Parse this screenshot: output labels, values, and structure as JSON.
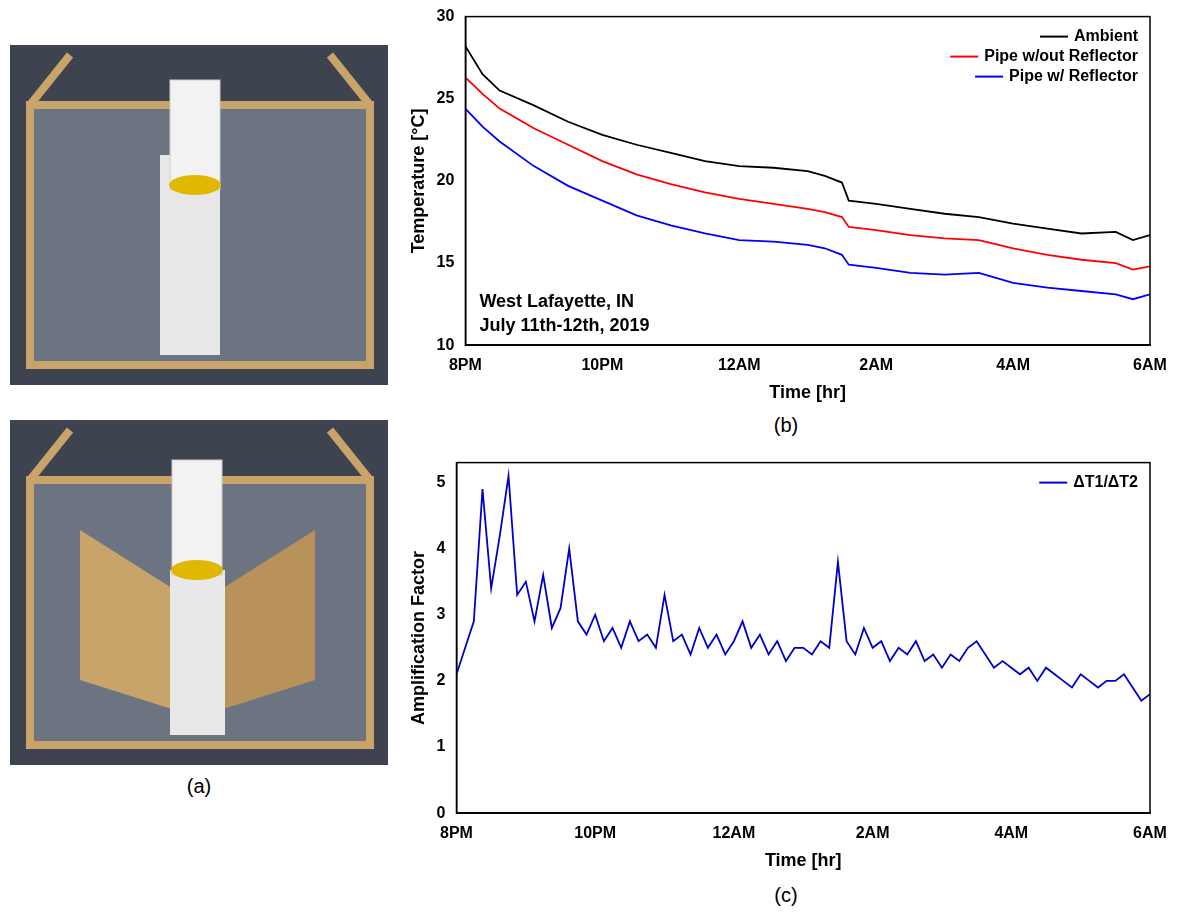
{
  "photo_panel": {
    "label": "(a)"
  },
  "chart_data": [
    {
      "type": "line",
      "panel": "(b)",
      "x_label": "Time [hr]",
      "y_label": "Temperature [°C]",
      "annotations": [
        "West Lafayette, IN",
        "July 11th-12th, 2019"
      ],
      "x": [
        20,
        20.25,
        20.5,
        21,
        21.5,
        22,
        22.5,
        23,
        23.5,
        24,
        24.5,
        25,
        25.25,
        25.5,
        25.6,
        26,
        26.5,
        27,
        27.5,
        28,
        28.5,
        29,
        29.5,
        29.75,
        30
      ],
      "series": [
        {
          "name": "Ambient",
          "color": "#000000",
          "values": [
            28.2,
            26.5,
            25.5,
            24.6,
            23.6,
            22.8,
            22.2,
            21.7,
            21.2,
            20.9,
            20.8,
            20.6,
            20.3,
            19.9,
            18.8,
            18.6,
            18.3,
            18.0,
            17.8,
            17.4,
            17.1,
            16.8,
            16.9,
            16.4,
            16.7
          ]
        },
        {
          "name": "Pipe w/out Reflector",
          "color": "#ff0000",
          "values": [
            26.3,
            25.3,
            24.4,
            23.2,
            22.2,
            21.2,
            20.4,
            19.8,
            19.3,
            18.9,
            18.6,
            18.3,
            18.1,
            17.8,
            17.2,
            17.0,
            16.7,
            16.5,
            16.4,
            15.9,
            15.5,
            15.2,
            15.0,
            14.6,
            14.8
          ]
        },
        {
          "name": "Pipe w/ Reflector",
          "color": "#0000ff",
          "values": [
            24.4,
            23.3,
            22.4,
            20.9,
            19.7,
            18.8,
            17.9,
            17.3,
            16.8,
            16.4,
            16.3,
            16.1,
            15.9,
            15.5,
            14.9,
            14.7,
            14.4,
            14.3,
            14.4,
            13.8,
            13.5,
            13.3,
            13.1,
            12.8,
            13.1
          ]
        }
      ],
      "xlim": [
        20,
        30
      ],
      "xticks": [
        {
          "value": 20,
          "label": "8PM"
        },
        {
          "value": 22,
          "label": "10PM"
        },
        {
          "value": 24,
          "label": "12AM"
        },
        {
          "value": 26,
          "label": "2AM"
        },
        {
          "value": 28,
          "label": "4AM"
        },
        {
          "value": 30,
          "label": "6AM"
        }
      ],
      "ylim": [
        10,
        30
      ],
      "yticks": [
        10,
        15,
        20,
        25,
        30
      ],
      "grid": false,
      "legend": "upper right"
    },
    {
      "type": "line",
      "panel": "(c)",
      "x_label": "Time [hr]",
      "y_label": "Amplification Factor",
      "x": [
        20,
        20.125,
        20.25,
        20.375,
        20.5,
        20.625,
        20.75,
        20.875,
        21,
        21.125,
        21.25,
        21.375,
        21.5,
        21.625,
        21.75,
        21.875,
        22,
        22.125,
        22.25,
        22.375,
        22.5,
        22.625,
        22.75,
        22.875,
        23,
        23.125,
        23.25,
        23.375,
        23.5,
        23.625,
        23.75,
        23.875,
        24,
        24.125,
        24.25,
        24.375,
        24.5,
        24.625,
        24.75,
        24.875,
        25,
        25.125,
        25.25,
        25.375,
        25.5,
        25.625,
        25.75,
        25.875,
        26,
        26.125,
        26.25,
        26.375,
        26.5,
        26.625,
        26.75,
        26.875,
        27,
        27.125,
        27.25,
        27.375,
        27.5,
        27.625,
        27.75,
        27.875,
        28,
        28.125,
        28.25,
        28.375,
        28.5,
        28.625,
        28.75,
        28.875,
        29,
        29.125,
        29.25,
        29.375,
        29.5,
        29.625,
        29.75,
        29.875,
        30
      ],
      "series": [
        {
          "name": "ΔT1/ΔT2",
          "color": "#0000c8",
          "values": [
            2.1,
            2.5,
            2.9,
            4.9,
            3.4,
            4.2,
            5.1,
            3.3,
            3.5,
            2.9,
            3.6,
            2.8,
            3.1,
            4.0,
            2.9,
            2.7,
            3.0,
            2.6,
            2.8,
            2.5,
            2.9,
            2.6,
            2.7,
            2.5,
            3.3,
            2.6,
            2.7,
            2.4,
            2.8,
            2.5,
            2.7,
            2.4,
            2.6,
            2.9,
            2.5,
            2.7,
            2.4,
            2.6,
            2.3,
            2.5,
            2.5,
            2.4,
            2.6,
            2.5,
            3.8,
            2.6,
            2.4,
            2.8,
            2.5,
            2.6,
            2.3,
            2.5,
            2.4,
            2.6,
            2.3,
            2.4,
            2.2,
            2.4,
            2.3,
            2.5,
            2.6,
            2.4,
            2.2,
            2.3,
            2.2,
            2.1,
            2.2,
            2.0,
            2.2,
            2.1,
            2.0,
            1.9,
            2.1,
            2.0,
            1.9,
            2.0,
            2.0,
            2.1,
            1.9,
            1.7,
            1.8
          ]
        }
      ],
      "xlim": [
        20,
        30
      ],
      "xticks": [
        {
          "value": 20,
          "label": "8PM"
        },
        {
          "value": 22,
          "label": "10PM"
        },
        {
          "value": 24,
          "label": "12AM"
        },
        {
          "value": 26,
          "label": "2AM"
        },
        {
          "value": 28,
          "label": "4AM"
        },
        {
          "value": 30,
          "label": "6AM"
        }
      ],
      "ylim": [
        0,
        5.3
      ],
      "yticks": [
        0,
        1,
        2,
        3,
        4,
        5
      ],
      "grid": false,
      "legend": "upper right"
    }
  ]
}
